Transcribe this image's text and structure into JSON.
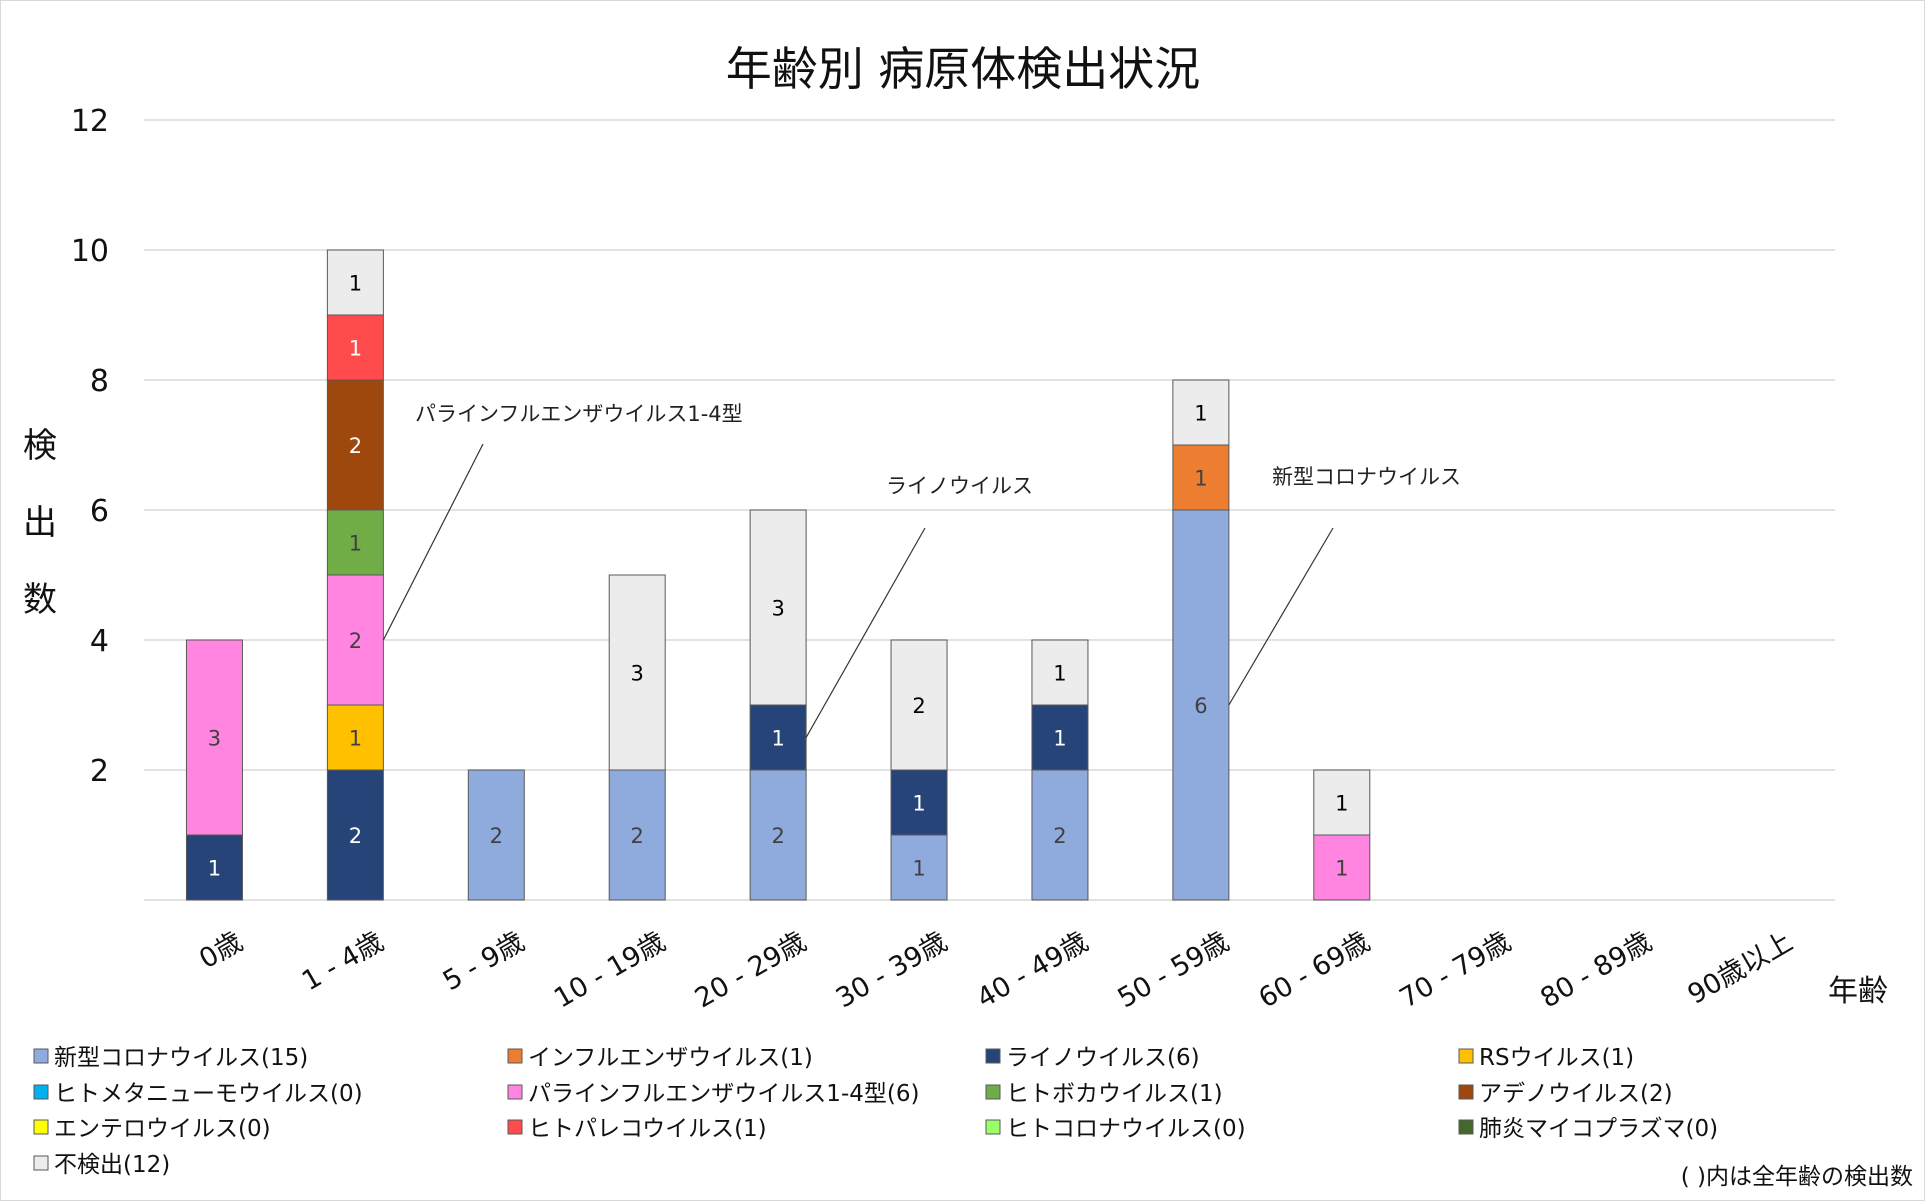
{
  "chart_data": {
    "type": "bar",
    "stacked": true,
    "title": "年齢別 病原体検出状況",
    "xlabel": "年齢",
    "ylabel": "検出数",
    "ylim": [
      0,
      12
    ],
    "yticks": [
      "2",
      "4",
      "6",
      "8",
      "10",
      "12"
    ],
    "grid": true,
    "categories": [
      "0歳",
      "1 - 4歳",
      "5 - 9歳",
      "10 - 19歳",
      "20 - 29歳",
      "30 - 39歳",
      "40 - 49歳",
      "50 - 59歳",
      "60 - 69歳",
      "70 - 79歳",
      "80 - 89歳",
      "90歳以上"
    ],
    "series": [
      {
        "name": "新型コロナウイルス",
        "total": 15,
        "color": "#8faadc",
        "label_color": "#404040",
        "values": [
          0,
          0,
          2,
          2,
          2,
          1,
          2,
          6,
          0,
          0,
          0,
          0
        ]
      },
      {
        "name": "インフルエンザウイルス",
        "total": 1,
        "color": "#ed7d31",
        "label_color": "#404040",
        "values": [
          0,
          0,
          0,
          0,
          0,
          0,
          0,
          1,
          0,
          0,
          0,
          0
        ]
      },
      {
        "name": "ライノウイルス",
        "total": 6,
        "color": "#264478",
        "label_color": "#ffffff",
        "values": [
          1,
          2,
          0,
          0,
          1,
          1,
          1,
          0,
          0,
          0,
          0,
          0
        ]
      },
      {
        "name": "RSウイルス",
        "total": 1,
        "color": "#ffc000",
        "label_color": "#404040",
        "values": [
          0,
          1,
          0,
          0,
          0,
          0,
          0,
          0,
          0,
          0,
          0,
          0
        ]
      },
      {
        "name": "ヒトメタニューモウイルス",
        "total": 0,
        "color": "#00b0f0",
        "label_color": "#404040",
        "values": [
          0,
          0,
          0,
          0,
          0,
          0,
          0,
          0,
          0,
          0,
          0,
          0
        ]
      },
      {
        "name": "パラインフルエンザウイルス1-4型",
        "total": 6,
        "color": "#ff85e0",
        "label_color": "#404040",
        "values": [
          3,
          2,
          0,
          0,
          0,
          0,
          0,
          0,
          1,
          0,
          0,
          0
        ]
      },
      {
        "name": "ヒトボカウイルス",
        "total": 1,
        "color": "#70ad47",
        "label_color": "#404040",
        "values": [
          0,
          1,
          0,
          0,
          0,
          0,
          0,
          0,
          0,
          0,
          0,
          0
        ]
      },
      {
        "name": "アデノウイルス",
        "total": 2,
        "color": "#9e480e",
        "label_color": "#ffffff",
        "values": [
          0,
          2,
          0,
          0,
          0,
          0,
          0,
          0,
          0,
          0,
          0,
          0
        ]
      },
      {
        "name": "エンテロウイルス",
        "total": 0,
        "color": "#ffff00",
        "label_color": "#404040",
        "values": [
          0,
          0,
          0,
          0,
          0,
          0,
          0,
          0,
          0,
          0,
          0,
          0
        ]
      },
      {
        "name": "ヒトパレコウイルス",
        "total": 1,
        "color": "#ff4b4b",
        "label_color": "#ffffff",
        "values": [
          0,
          1,
          0,
          0,
          0,
          0,
          0,
          0,
          0,
          0,
          0,
          0
        ]
      },
      {
        "name": "ヒトコロナウイルス",
        "total": 0,
        "color": "#99ff66",
        "label_color": "#404040",
        "values": [
          0,
          0,
          0,
          0,
          0,
          0,
          0,
          0,
          0,
          0,
          0,
          0
        ]
      },
      {
        "name": "肺炎マイコプラズマ",
        "total": 0,
        "color": "#43682b",
        "label_color": "#ffffff",
        "values": [
          0,
          0,
          0,
          0,
          0,
          0,
          0,
          0,
          0,
          0,
          0,
          0
        ]
      },
      {
        "name": "不検出",
        "total": 12,
        "color": "#ececec",
        "label_color": "#000000",
        "values": [
          0,
          1,
          0,
          3,
          3,
          2,
          1,
          1,
          1,
          0,
          0,
          0
        ]
      }
    ],
    "legend": {
      "placement": "bottom",
      "items": [
        "新型コロナウイルス(15)",
        "インフルエンザウイルス(1)",
        "ライノウイルス(6)",
        "RSウイルス(1)",
        "ヒトメタニューモウイルス(0)",
        "パラインフルエンザウイルス1-4型(6)",
        "ヒトボカウイルス(1)",
        "アデノウイルス(2)",
        "エンテロウイルス(0)",
        "ヒトパレコウイルス(1)",
        "ヒトコロナウイルス(0)",
        "肺炎マイコプラズマ(0)",
        "不検出(12)"
      ]
    },
    "annotations": [
      {
        "text": "パラインフルエンザウイルス1-4型",
        "category": "1 - 4歳",
        "series": "パラインフルエンザウイルス1-4型"
      },
      {
        "text": "ライノウイルス",
        "category": "20 - 29歳",
        "series": "ライノウイルス"
      },
      {
        "text": "新型コロナウイルス",
        "category": "50 - 59歳",
        "series": "新型コロナウイルス"
      }
    ],
    "note": "( )内は全年齢の検出数"
  }
}
